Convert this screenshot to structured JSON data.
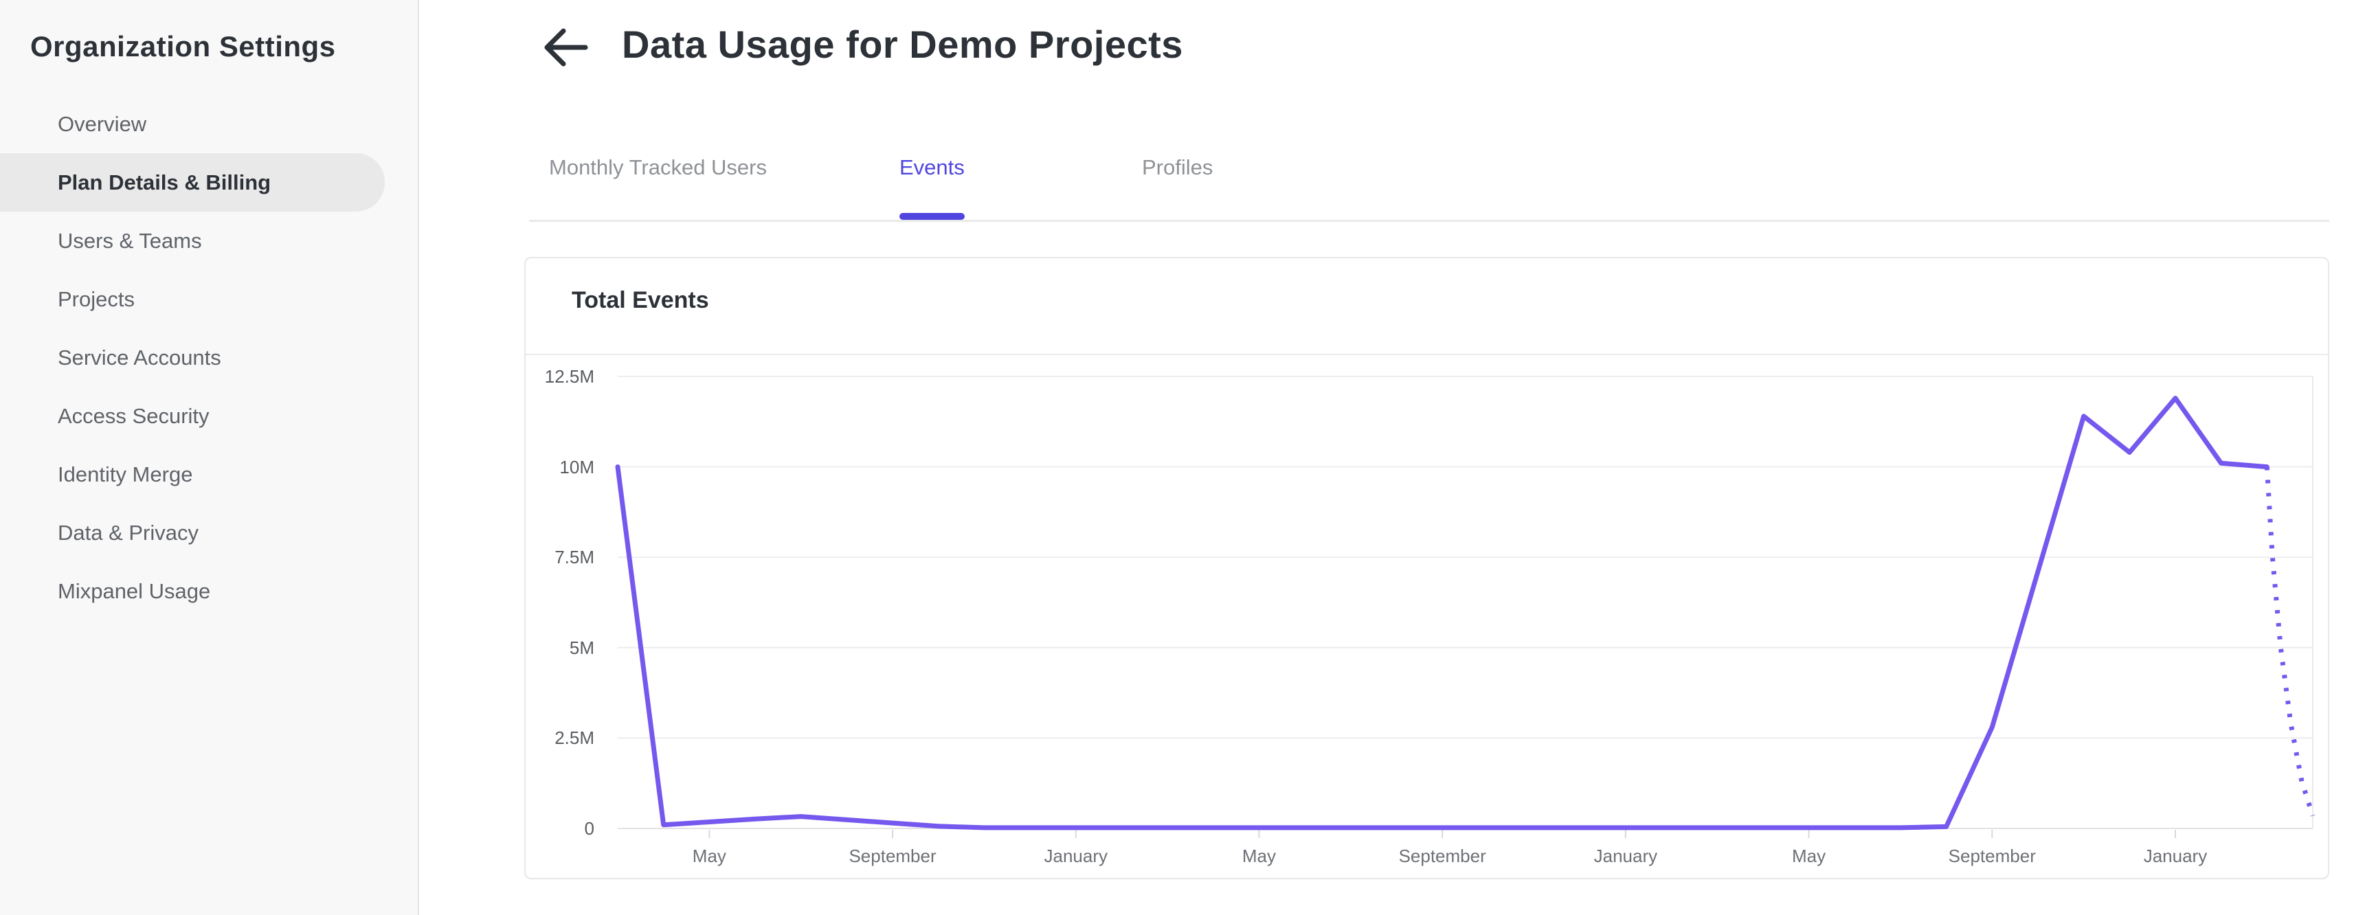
{
  "sidebar": {
    "title": "Organization Settings",
    "items": [
      {
        "label": "Overview",
        "active": false
      },
      {
        "label": "Plan Details & Billing",
        "active": true
      },
      {
        "label": "Users & Teams",
        "active": false
      },
      {
        "label": "Projects",
        "active": false
      },
      {
        "label": "Service Accounts",
        "active": false
      },
      {
        "label": "Access Security",
        "active": false
      },
      {
        "label": "Identity Merge",
        "active": false
      },
      {
        "label": "Data & Privacy",
        "active": false
      },
      {
        "label": "Mixpanel Usage",
        "active": false
      }
    ]
  },
  "header": {
    "title": "Data Usage for Demo Projects",
    "back_icon": "arrow-left"
  },
  "tabs": [
    {
      "label": "Monthly Tracked Users",
      "active": false
    },
    {
      "label": "Events",
      "active": true
    },
    {
      "label": "Profiles",
      "active": false
    }
  ],
  "colors": {
    "accent": "#5045df",
    "line": "#7558ee",
    "gridline": "#ededed",
    "axis_line": "#e3e3e3",
    "tick": "#d9d9d9",
    "plot_right_edge": "#e9e9e9"
  },
  "chart_data": {
    "type": "line",
    "title": "Total Events",
    "legend_position": "none",
    "grid": "horizontal",
    "ylim": [
      0,
      12500000
    ],
    "y_ticks": [
      {
        "value": 0,
        "label": "0"
      },
      {
        "value": 2500000,
        "label": "2.5M"
      },
      {
        "value": 5000000,
        "label": "5M"
      },
      {
        "value": 7500000,
        "label": "7.5M"
      },
      {
        "value": 10000000,
        "label": "10M"
      },
      {
        "value": 12500000,
        "label": "12.5M"
      }
    ],
    "x_months_total": 37,
    "x_ticks": [
      {
        "m": 2,
        "label": "May"
      },
      {
        "m": 6,
        "label": "September"
      },
      {
        "m": 10,
        "label": "January"
      },
      {
        "m": 14,
        "label": "May"
      },
      {
        "m": 18,
        "label": "September"
      },
      {
        "m": 22,
        "label": "January"
      },
      {
        "m": 26,
        "label": "May"
      },
      {
        "m": 30,
        "label": "September"
      },
      {
        "m": 34,
        "label": "January"
      }
    ],
    "series": [
      {
        "name": "Total Events",
        "style": "solid",
        "points": [
          {
            "m": 0,
            "value": 10000000
          },
          {
            "m": 1,
            "value": 100000
          },
          {
            "m": 2,
            "value": 180000
          },
          {
            "m": 3,
            "value": 260000
          },
          {
            "m": 4,
            "value": 330000
          },
          {
            "m": 5,
            "value": 240000
          },
          {
            "m": 6,
            "value": 150000
          },
          {
            "m": 7,
            "value": 60000
          },
          {
            "m": 8,
            "value": 20000
          },
          {
            "m": 9,
            "value": 20000
          },
          {
            "m": 10,
            "value": 20000
          },
          {
            "m": 11,
            "value": 20000
          },
          {
            "m": 12,
            "value": 20000
          },
          {
            "m": 13,
            "value": 20000
          },
          {
            "m": 14,
            "value": 20000
          },
          {
            "m": 15,
            "value": 20000
          },
          {
            "m": 16,
            "value": 20000
          },
          {
            "m": 17,
            "value": 20000
          },
          {
            "m": 18,
            "value": 20000
          },
          {
            "m": 19,
            "value": 20000
          },
          {
            "m": 20,
            "value": 20000
          },
          {
            "m": 21,
            "value": 20000
          },
          {
            "m": 22,
            "value": 20000
          },
          {
            "m": 23,
            "value": 20000
          },
          {
            "m": 24,
            "value": 20000
          },
          {
            "m": 25,
            "value": 20000
          },
          {
            "m": 26,
            "value": 20000
          },
          {
            "m": 27,
            "value": 20000
          },
          {
            "m": 28,
            "value": 20000
          },
          {
            "m": 29,
            "value": 50000
          },
          {
            "m": 30,
            "value": 2800000
          },
          {
            "m": 31,
            "value": 7100000
          },
          {
            "m": 32,
            "value": 11400000
          },
          {
            "m": 33,
            "value": 10400000
          },
          {
            "m": 34,
            "value": 11900000
          },
          {
            "m": 35,
            "value": 10100000
          },
          {
            "m": 36,
            "value": 10000000
          }
        ]
      },
      {
        "name": "Total Events (projected)",
        "style": "dotted",
        "points": [
          {
            "m": 36,
            "value": 10000000
          },
          {
            "m": 36.12,
            "value": 7500000
          },
          {
            "m": 36.3,
            "value": 5000000
          },
          {
            "m": 36.52,
            "value": 2900000
          },
          {
            "m": 36.76,
            "value": 1300000
          },
          {
            "m": 37,
            "value": 350000
          }
        ]
      }
    ]
  }
}
